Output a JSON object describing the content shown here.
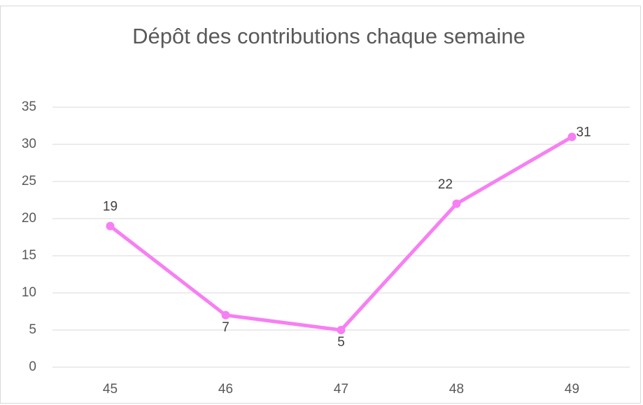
{
  "chart_data": {
    "type": "line",
    "title": "Dépôt des contributions chaque semaine",
    "categories": [
      "45",
      "46",
      "47",
      "48",
      "49"
    ],
    "series": [
      {
        "color": "#f77ff3",
        "values": [
          19,
          7,
          5,
          22,
          31
        ]
      }
    ],
    "ylim": [
      0,
      35
    ],
    "yticks": [
      0,
      5,
      10,
      15,
      20,
      25,
      30,
      35
    ],
    "grid": true
  }
}
